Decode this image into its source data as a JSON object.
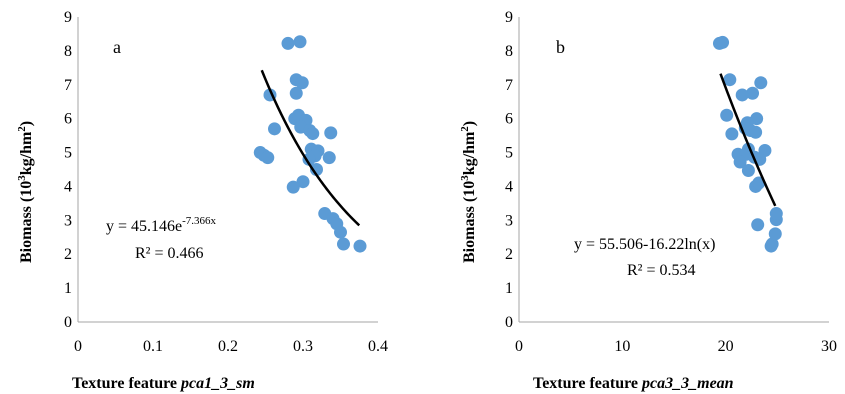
{
  "chart_data": [
    {
      "type": "scatter",
      "panel_label": "a",
      "ylabel": {
        "main": "Biomass (10",
        "sup": "3",
        "tail": "kg/hm",
        "sup2": "2",
        "close": ")"
      },
      "xlabel": {
        "prefix": "Texture feature ",
        "italic": "pca1_3_sm"
      },
      "xlim": [
        0,
        0.4
      ],
      "ylim": [
        0,
        9
      ],
      "xticks": [
        0,
        0.1,
        0.2,
        0.3,
        0.4
      ],
      "xtick_labels": [
        "0",
        "0.1",
        "0.2",
        "0.3",
        "0.4"
      ],
      "yticks": [
        0,
        1,
        2,
        3,
        4,
        5,
        6,
        7,
        8,
        9
      ],
      "ytick_labels": [
        "0",
        "1",
        "2",
        "3",
        "4",
        "5",
        "6",
        "7",
        "8",
        "9"
      ],
      "points": [
        [
          0.28,
          8.22
        ],
        [
          0.296,
          8.27
        ],
        [
          0.291,
          7.15
        ],
        [
          0.299,
          7.06
        ],
        [
          0.291,
          6.75
        ],
        [
          0.256,
          6.7
        ],
        [
          0.289,
          6.0
        ],
        [
          0.294,
          6.1
        ],
        [
          0.304,
          5.95
        ],
        [
          0.297,
          5.75
        ],
        [
          0.309,
          5.65
        ],
        [
          0.262,
          5.7
        ],
        [
          0.313,
          5.56
        ],
        [
          0.337,
          5.58
        ],
        [
          0.243,
          5.0
        ],
        [
          0.248,
          4.92
        ],
        [
          0.253,
          4.85
        ],
        [
          0.311,
          5.1
        ],
        [
          0.32,
          5.05
        ],
        [
          0.316,
          4.9
        ],
        [
          0.308,
          4.8
        ],
        [
          0.335,
          4.85
        ],
        [
          0.318,
          4.5
        ],
        [
          0.3,
          4.14
        ],
        [
          0.287,
          3.98
        ],
        [
          0.329,
          3.2
        ],
        [
          0.34,
          3.05
        ],
        [
          0.345,
          2.9
        ],
        [
          0.35,
          2.65
        ],
        [
          0.354,
          2.3
        ],
        [
          0.376,
          2.24
        ]
      ],
      "trendline": {
        "type": "exponential",
        "a": 45.146,
        "b": -7.366,
        "x_range": [
          0.245,
          0.375
        ]
      },
      "equation": {
        "base": "y = 45.146e",
        "exponent": "-7.366x"
      },
      "r2": "R² = 0.466",
      "grid": false
    },
    {
      "type": "scatter",
      "panel_label": "b",
      "ylabel": {
        "main": "Biomass (10",
        "sup": "3",
        "tail": "kg/hm",
        "sup2": "2",
        "close": ")"
      },
      "xlabel": {
        "prefix": "Texture feature ",
        "italic": "pca3_3_mean"
      },
      "xlim": [
        0,
        30
      ],
      "ylim": [
        0,
        9
      ],
      "xticks": [
        0,
        10,
        20,
        30
      ],
      "xtick_labels": [
        "0",
        "10",
        "20",
        "30"
      ],
      "yticks": [
        0,
        1,
        2,
        3,
        4,
        5,
        6,
        7,
        8,
        9
      ],
      "ytick_labels": [
        "0",
        "1",
        "2",
        "3",
        "4",
        "5",
        "6",
        "7",
        "8",
        "9"
      ],
      "points": [
        [
          19.4,
          8.22
        ],
        [
          19.7,
          8.25
        ],
        [
          20.4,
          7.15
        ],
        [
          23.4,
          7.06
        ],
        [
          22.6,
          6.75
        ],
        [
          21.6,
          6.7
        ],
        [
          20.1,
          6.1
        ],
        [
          23.0,
          6.0
        ],
        [
          22.1,
          5.88
        ],
        [
          21.9,
          5.72
        ],
        [
          22.4,
          5.65
        ],
        [
          20.6,
          5.55
        ],
        [
          22.9,
          5.6
        ],
        [
          21.2,
          4.95
        ],
        [
          22.2,
          5.1
        ],
        [
          23.8,
          5.06
        ],
        [
          22.0,
          4.95
        ],
        [
          23.3,
          4.8
        ],
        [
          21.4,
          4.72
        ],
        [
          22.8,
          4.86
        ],
        [
          22.2,
          4.47
        ],
        [
          22.9,
          4.0
        ],
        [
          23.2,
          4.1
        ],
        [
          23.1,
          2.87
        ],
        [
          24.5,
          2.3
        ],
        [
          24.4,
          2.24
        ],
        [
          24.8,
          2.6
        ],
        [
          24.9,
          3.02
        ],
        [
          24.9,
          3.2
        ]
      ],
      "trendline": {
        "type": "logarithmic",
        "a": 55.506,
        "b": -16.22,
        "x_range": [
          19.5,
          24.8
        ]
      },
      "equation": "y = 55.506-16.22ln(x)",
      "r2": "R² = 0.534",
      "grid": false
    }
  ]
}
